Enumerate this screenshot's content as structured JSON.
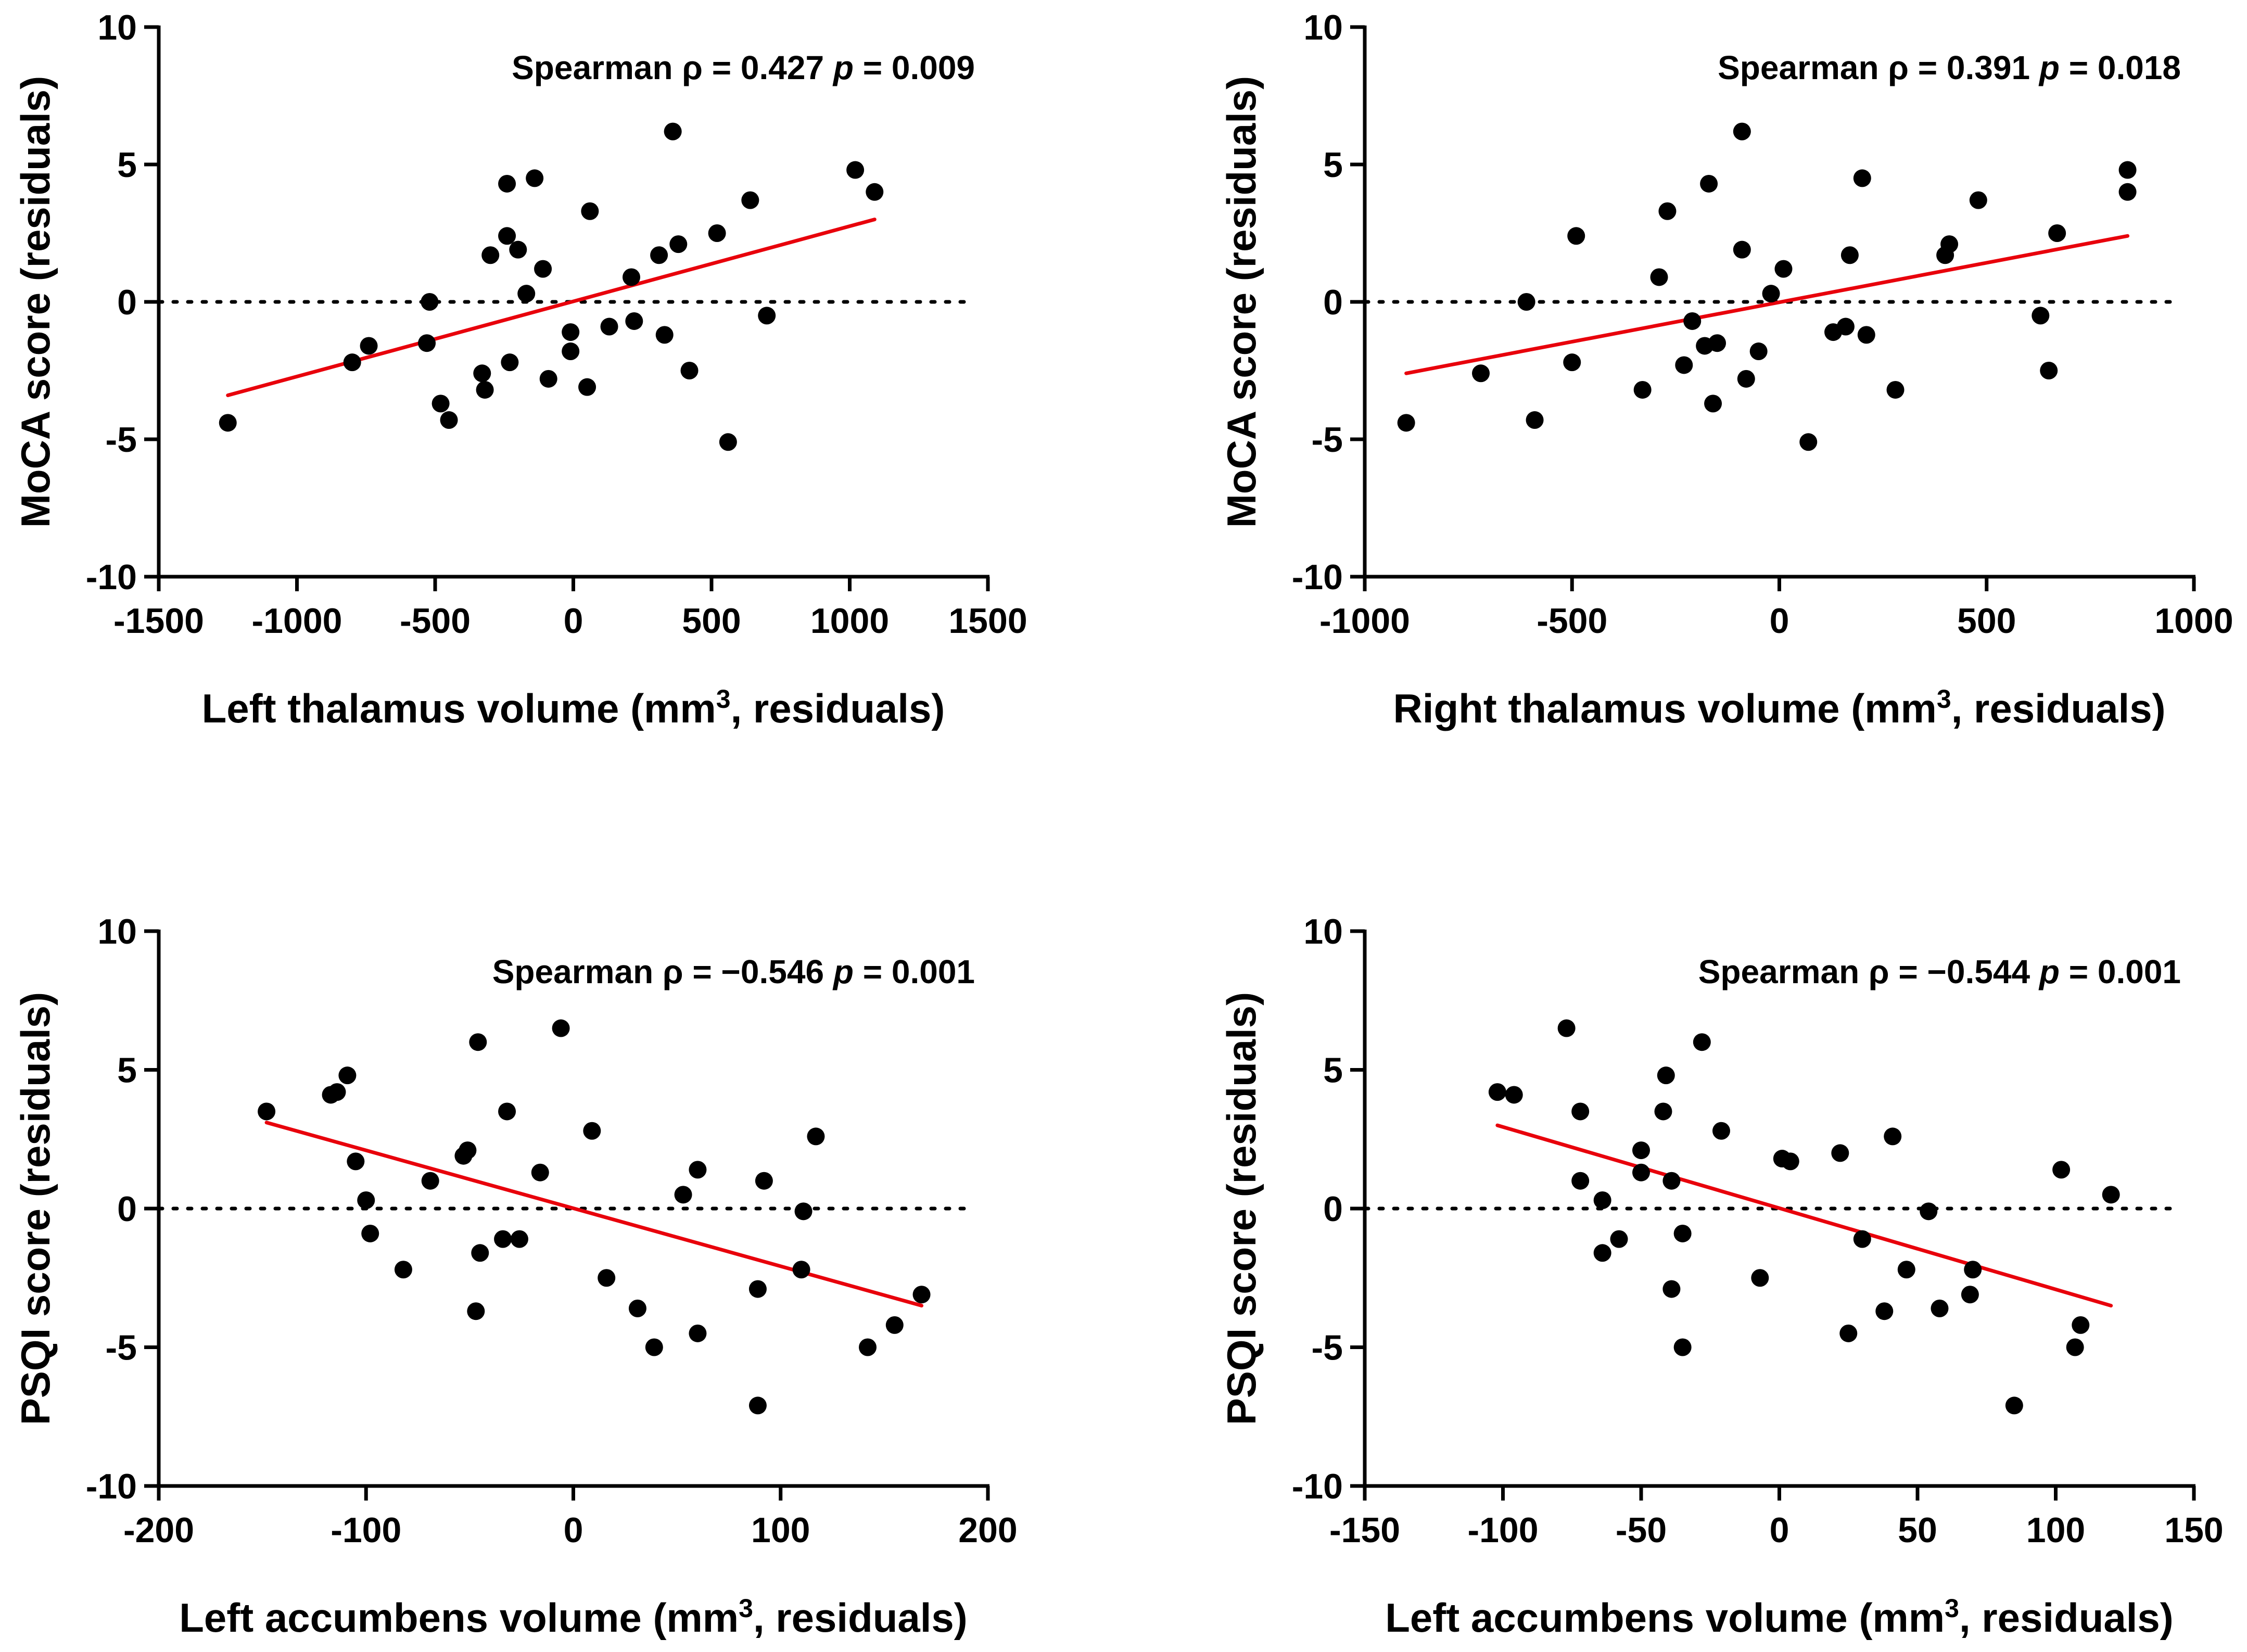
{
  "colors": {
    "points": "#000000",
    "fit_line": "#e8000b",
    "axes": "#000000",
    "zero_line": "#000000"
  },
  "chart_data": [
    {
      "type": "scatter",
      "title": "",
      "xlabel": "Left thalamus volume (mm",
      "xlabel_sup": "3",
      "xlabel_tail": ", residuals)",
      "ylabel": "MoCA score (residuals)",
      "xlim": [
        -1500,
        1500
      ],
      "ylim": [
        -10,
        10
      ],
      "xticks": [
        -1500,
        -1000,
        -500,
        0,
        500,
        1000,
        1500
      ],
      "yticks": [
        -10,
        -5,
        0,
        5,
        10
      ],
      "xtick_labels": [
        "-1500",
        "-1000",
        "-500",
        "0",
        "500",
        "1000",
        "1500"
      ],
      "ytick_labels": [
        "-10",
        "-5",
        "0",
        "5",
        "10"
      ],
      "stat_prefix": "Spearman ρ = 0.427 ",
      "stat_p_italic": "p",
      "stat_suffix": " = 0.009",
      "fit_line": {
        "x": [
          -1250,
          1090
        ],
        "y": [
          -3.4,
          3.0
        ]
      },
      "points": [
        {
          "x": -1250,
          "y": -4.4
        },
        {
          "x": -800,
          "y": -2.2
        },
        {
          "x": -740,
          "y": -1.6
        },
        {
          "x": -530,
          "y": -1.5
        },
        {
          "x": -520,
          "y": 0.0
        },
        {
          "x": -480,
          "y": -3.7
        },
        {
          "x": -450,
          "y": -4.3
        },
        {
          "x": -330,
          "y": -2.6
        },
        {
          "x": -320,
          "y": -3.2
        },
        {
          "x": -300,
          "y": 1.7
        },
        {
          "x": -240,
          "y": 4.3
        },
        {
          "x": -240,
          "y": 2.4
        },
        {
          "x": -230,
          "y": -2.2
        },
        {
          "x": -200,
          "y": 1.9
        },
        {
          "x": -170,
          "y": 0.3
        },
        {
          "x": -140,
          "y": 4.5
        },
        {
          "x": -110,
          "y": 1.2
        },
        {
          "x": -90,
          "y": -2.8
        },
        {
          "x": -10,
          "y": -1.1
        },
        {
          "x": -10,
          "y": -1.8
        },
        {
          "x": 50,
          "y": -3.1
        },
        {
          "x": 60,
          "y": 3.3
        },
        {
          "x": 130,
          "y": -0.9
        },
        {
          "x": 210,
          "y": 0.9
        },
        {
          "x": 220,
          "y": -0.7
        },
        {
          "x": 310,
          "y": 1.7
        },
        {
          "x": 330,
          "y": -1.2
        },
        {
          "x": 360,
          "y": 6.2
        },
        {
          "x": 380,
          "y": 2.1
        },
        {
          "x": 420,
          "y": -2.5
        },
        {
          "x": 520,
          "y": 2.5
        },
        {
          "x": 560,
          "y": -5.1
        },
        {
          "x": 640,
          "y": 3.7
        },
        {
          "x": 700,
          "y": -0.5
        },
        {
          "x": 1020,
          "y": 4.8
        },
        {
          "x": 1090,
          "y": 4.0
        }
      ]
    },
    {
      "type": "scatter",
      "title": "",
      "xlabel": "Right thalamus volume (mm",
      "xlabel_sup": "3",
      "xlabel_tail": ", residuals)",
      "ylabel": "MoCA score (residuals)",
      "xlim": [
        -1000,
        1000
      ],
      "ylim": [
        -10,
        10
      ],
      "xticks": [
        -1000,
        -500,
        0,
        500,
        1000
      ],
      "yticks": [
        -10,
        -5,
        0,
        5,
        10
      ],
      "xtick_labels": [
        "-1000",
        "-500",
        "0",
        "500",
        "1000"
      ],
      "ytick_labels": [
        "-10",
        "-5",
        "0",
        "5",
        "10"
      ],
      "stat_prefix": "Spearman ρ = 0.391 ",
      "stat_p_italic": "p",
      "stat_suffix": " = 0.018",
      "fit_line": {
        "x": [
          -900,
          840
        ],
        "y": [
          -2.6,
          2.4
        ]
      },
      "points": [
        {
          "x": -900,
          "y": -4.4
        },
        {
          "x": -720,
          "y": -2.6
        },
        {
          "x": -610,
          "y": 0.0
        },
        {
          "x": -590,
          "y": -4.3
        },
        {
          "x": -500,
          "y": -2.2
        },
        {
          "x": -490,
          "y": 2.4
        },
        {
          "x": -330,
          "y": -3.2
        },
        {
          "x": -290,
          "y": 0.9
        },
        {
          "x": -270,
          "y": 3.3
        },
        {
          "x": -230,
          "y": -2.3
        },
        {
          "x": -210,
          "y": -0.7
        },
        {
          "x": -180,
          "y": -1.6
        },
        {
          "x": -170,
          "y": 4.3
        },
        {
          "x": -160,
          "y": -3.7
        },
        {
          "x": -150,
          "y": -1.5
        },
        {
          "x": -90,
          "y": 6.2
        },
        {
          "x": -90,
          "y": 1.9
        },
        {
          "x": -80,
          "y": -2.8
        },
        {
          "x": -50,
          "y": -1.8
        },
        {
          "x": -20,
          "y": 0.3
        },
        {
          "x": 10,
          "y": 1.2
        },
        {
          "x": 70,
          "y": -5.1
        },
        {
          "x": 130,
          "y": -1.1
        },
        {
          "x": 160,
          "y": -0.9
        },
        {
          "x": 170,
          "y": 1.7
        },
        {
          "x": 200,
          "y": 4.5
        },
        {
          "x": 210,
          "y": -1.2
        },
        {
          "x": 280,
          "y": -3.2
        },
        {
          "x": 400,
          "y": 1.7
        },
        {
          "x": 410,
          "y": 2.1
        },
        {
          "x": 480,
          "y": 3.7
        },
        {
          "x": 630,
          "y": -0.5
        },
        {
          "x": 650,
          "y": -2.5
        },
        {
          "x": 670,
          "y": 2.5
        },
        {
          "x": 840,
          "y": 4.0
        },
        {
          "x": 840,
          "y": 4.8
        }
      ]
    },
    {
      "type": "scatter",
      "title": "",
      "xlabel": "Left accumbens volume (mm",
      "xlabel_sup": "3",
      "xlabel_tail": ", residuals)",
      "ylabel": "PSQI score (residuals)",
      "xlim": [
        -200,
        200
      ],
      "ylim": [
        -10,
        10
      ],
      "xticks": [
        -200,
        -100,
        0,
        100,
        200
      ],
      "yticks": [
        -10,
        -5,
        0,
        5,
        10
      ],
      "xtick_labels": [
        "-200",
        "-100",
        "0",
        "100",
        "200"
      ],
      "ytick_labels": [
        "-10",
        "-5",
        "0",
        "5",
        "10"
      ],
      "stat_prefix": "Spearman ρ = −0.546 ",
      "stat_p_italic": "p",
      "stat_suffix": " = 0.001",
      "fit_line": {
        "x": [
          -148,
          168
        ],
        "y": [
          3.1,
          -3.5
        ]
      },
      "points": [
        {
          "x": -148,
          "y": 3.5
        },
        {
          "x": -117,
          "y": 4.1
        },
        {
          "x": -114,
          "y": 4.2
        },
        {
          "x": -109,
          "y": 4.8
        },
        {
          "x": -105,
          "y": 1.7
        },
        {
          "x": -100,
          "y": 0.3
        },
        {
          "x": -98,
          "y": -0.9
        },
        {
          "x": -82,
          "y": -2.2
        },
        {
          "x": -69,
          "y": 1.0
        },
        {
          "x": -53,
          "y": 1.9
        },
        {
          "x": -51,
          "y": 2.1
        },
        {
          "x": -47,
          "y": -3.7
        },
        {
          "x": -46,
          "y": 6.0
        },
        {
          "x": -45,
          "y": -1.6
        },
        {
          "x": -34,
          "y": -1.1
        },
        {
          "x": -32,
          "y": 3.5
        },
        {
          "x": -26,
          "y": -1.1
        },
        {
          "x": -16,
          "y": 1.3
        },
        {
          "x": -6,
          "y": 6.5
        },
        {
          "x": 9,
          "y": 2.8
        },
        {
          "x": 16,
          "y": -2.5
        },
        {
          "x": 31,
          "y": -3.6
        },
        {
          "x": 39,
          "y": -5.0
        },
        {
          "x": 53,
          "y": 0.5
        },
        {
          "x": 60,
          "y": 1.4
        },
        {
          "x": 60,
          "y": -4.5
        },
        {
          "x": 89,
          "y": -7.1
        },
        {
          "x": 89,
          "y": -2.9
        },
        {
          "x": 92,
          "y": 1.0
        },
        {
          "x": 110,
          "y": -2.2
        },
        {
          "x": 111,
          "y": -0.1
        },
        {
          "x": 117,
          "y": 2.6
        },
        {
          "x": 142,
          "y": -5.0
        },
        {
          "x": 155,
          "y": -4.2
        },
        {
          "x": 168,
          "y": -3.1
        }
      ]
    },
    {
      "type": "scatter",
      "title": "",
      "xlabel": "Left accumbens volume (mm",
      "xlabel_sup": "3",
      "xlabel_tail": ", residuals)",
      "ylabel": "PSQI score (residuals)",
      "xlim": [
        -150,
        150
      ],
      "ylim": [
        -10,
        10
      ],
      "xticks": [
        -150,
        -100,
        -50,
        0,
        50,
        100,
        150
      ],
      "yticks": [
        -10,
        -5,
        0,
        5,
        10
      ],
      "xtick_labels": [
        "-150",
        "-100",
        "-50",
        "0",
        "50",
        "100",
        "150"
      ],
      "ytick_labels": [
        "-10",
        "-5",
        "0",
        "5",
        "10"
      ],
      "stat_prefix": "Spearman ρ = −0.544 ",
      "stat_p_italic": "p",
      "stat_suffix": " = 0.001",
      "fit_line": {
        "x": [
          -102,
          120
        ],
        "y": [
          3.0,
          -3.5
        ]
      },
      "points": [
        {
          "x": -102,
          "y": 4.2
        },
        {
          "x": -96,
          "y": 4.1
        },
        {
          "x": -77,
          "y": 6.5
        },
        {
          "x": -72,
          "y": 3.5
        },
        {
          "x": -72,
          "y": 1.0
        },
        {
          "x": -64,
          "y": 0.3
        },
        {
          "x": -64,
          "y": -1.6
        },
        {
          "x": -58,
          "y": -1.1
        },
        {
          "x": -50,
          "y": 1.3
        },
        {
          "x": -50,
          "y": 2.1
        },
        {
          "x": -42,
          "y": 3.5
        },
        {
          "x": -41,
          "y": 4.8
        },
        {
          "x": -39,
          "y": -2.9
        },
        {
          "x": -39,
          "y": 1.0
        },
        {
          "x": -35,
          "y": -0.9
        },
        {
          "x": -35,
          "y": -5.0
        },
        {
          "x": -28,
          "y": 6.0
        },
        {
          "x": -21,
          "y": 2.8
        },
        {
          "x": -7,
          "y": -2.5
        },
        {
          "x": 1,
          "y": 1.8
        },
        {
          "x": 4,
          "y": 1.7
        },
        {
          "x": 22,
          "y": 2.0
        },
        {
          "x": 25,
          "y": -4.5
        },
        {
          "x": 30,
          "y": -1.1
        },
        {
          "x": 38,
          "y": -3.7
        },
        {
          "x": 41,
          "y": 2.6
        },
        {
          "x": 46,
          "y": -2.2
        },
        {
          "x": 54,
          "y": -0.1
        },
        {
          "x": 58,
          "y": -3.6
        },
        {
          "x": 69,
          "y": -3.1
        },
        {
          "x": 70,
          "y": -2.2
        },
        {
          "x": 85,
          "y": -7.1
        },
        {
          "x": 102,
          "y": 1.4
        },
        {
          "x": 107,
          "y": -5.0
        },
        {
          "x": 109,
          "y": -4.2
        },
        {
          "x": 120,
          "y": 0.5
        }
      ]
    }
  ]
}
